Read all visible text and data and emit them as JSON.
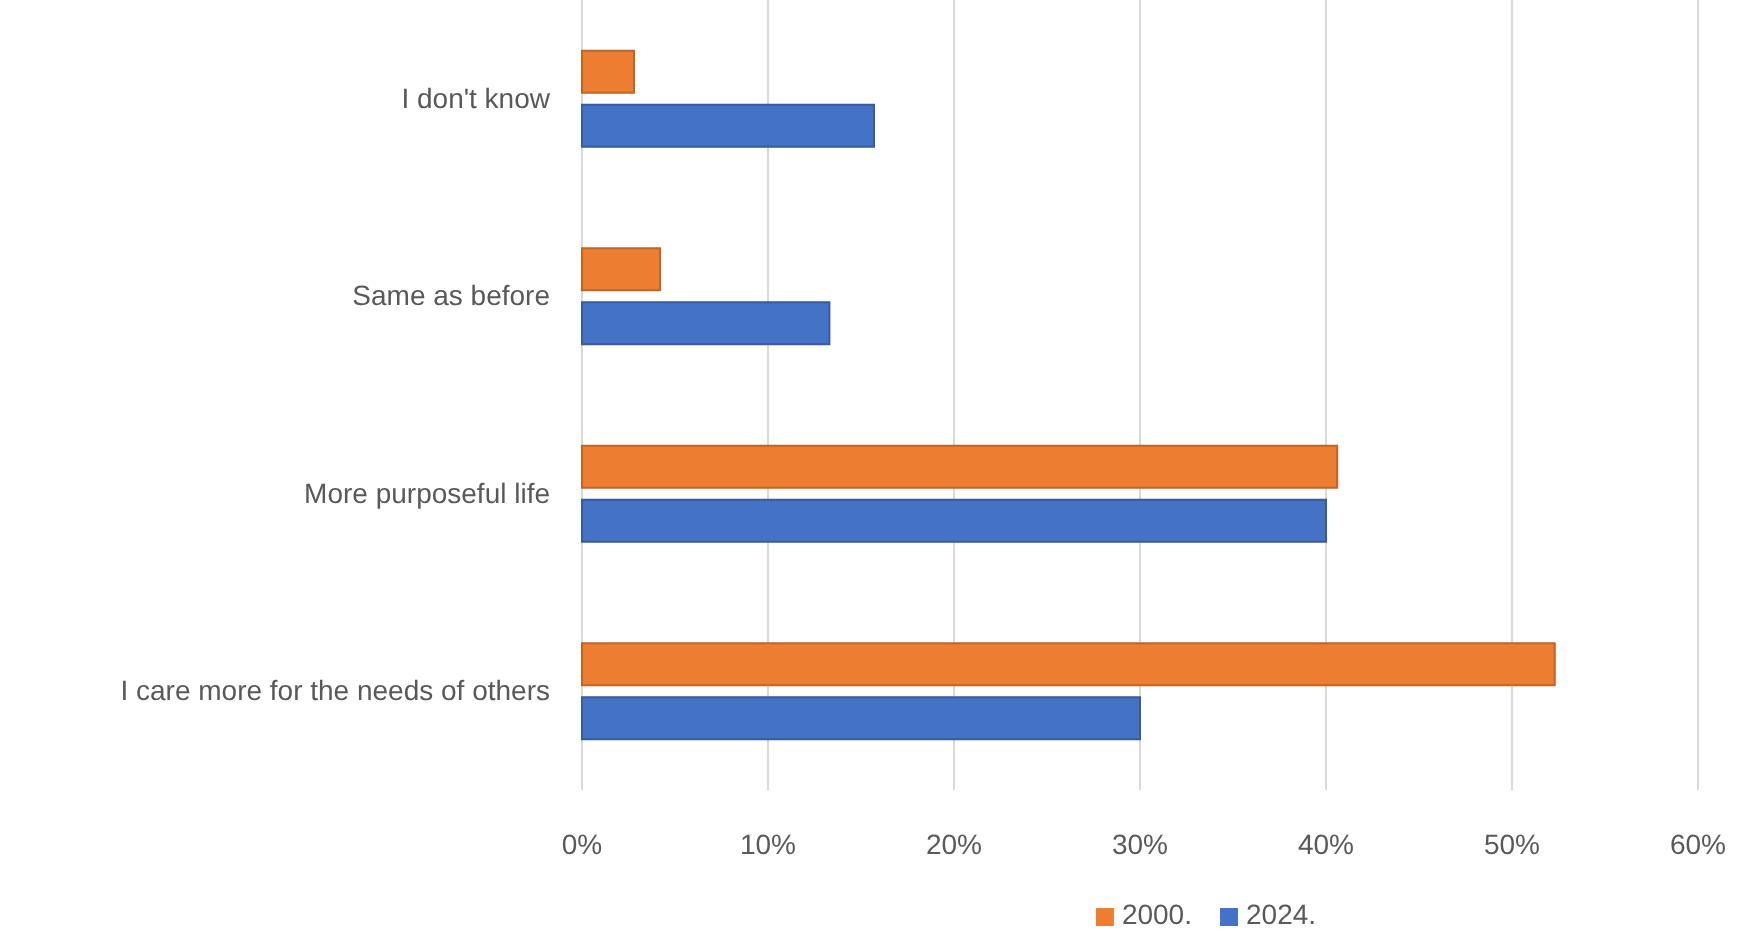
{
  "chart_data": {
    "type": "bar",
    "orientation": "horizontal",
    "categories": [
      "I don't know",
      "Same as before",
      "More purposeful life",
      "I care more for the needs of others"
    ],
    "series": [
      {
        "name": "2000.",
        "color": "#ed7d31",
        "values": [
          2.8,
          4.2,
          40.6,
          52.3
        ]
      },
      {
        "name": "2024.",
        "color": "#4472c4",
        "values": [
          15.7,
          13.3,
          40.0,
          30.0
        ]
      }
    ],
    "xlim": [
      0,
      60
    ],
    "xticks": [
      {
        "value": 0,
        "label": "0%"
      },
      {
        "value": 10,
        "label": "10%"
      },
      {
        "value": 20,
        "label": "20%"
      },
      {
        "value": 30,
        "label": "30%"
      },
      {
        "value": 40,
        "label": "40%"
      },
      {
        "value": 50,
        "label": "50%"
      },
      {
        "value": 60,
        "label": "60%"
      }
    ],
    "grid": "x",
    "legend": "bottom"
  }
}
